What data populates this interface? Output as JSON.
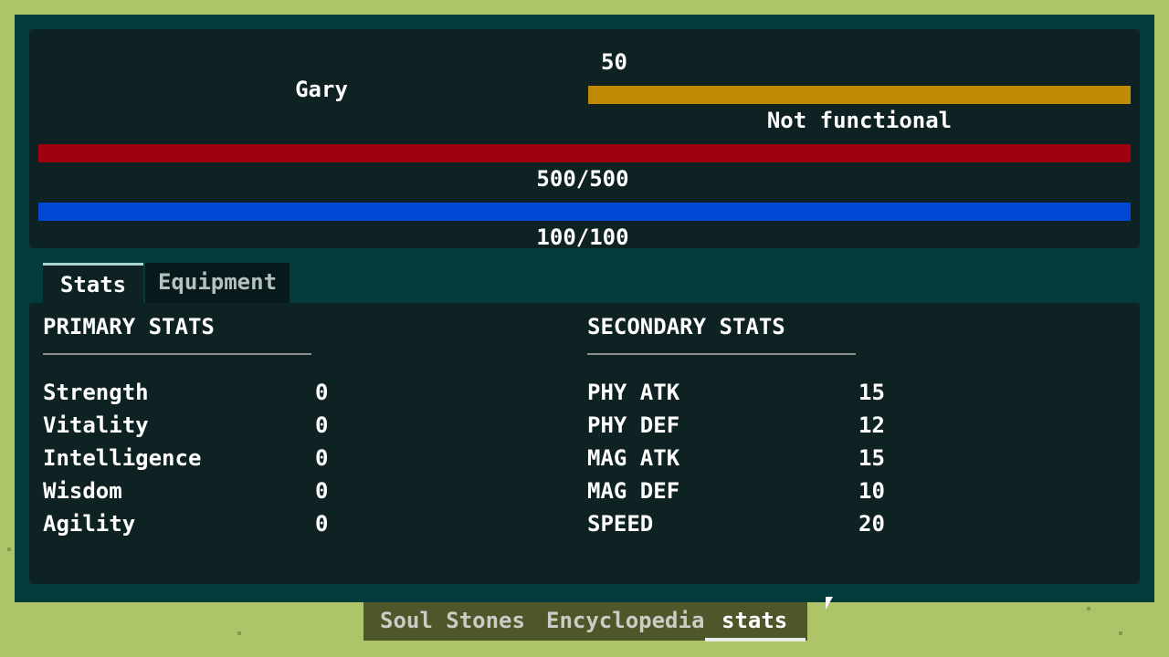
{
  "character": {
    "name": "Gary",
    "level": "50",
    "status_text": "Not functional",
    "status_bar": {
      "fill_percent": 100,
      "color": "#c08a05"
    },
    "hp": {
      "text": "500/500",
      "current": 500,
      "max": 500,
      "color": "#a00012"
    },
    "mp": {
      "text": "100/100",
      "current": 100,
      "max": 100,
      "color": "#0048d8"
    }
  },
  "tabs": [
    {
      "label": "Stats",
      "active": true
    },
    {
      "label": "Equipment",
      "active": false
    }
  ],
  "primary": {
    "title": "PRIMARY STATS",
    "rows": [
      {
        "label": "Strength",
        "value": "0"
      },
      {
        "label": "Vitality",
        "value": "0"
      },
      {
        "label": "Intelligence",
        "value": "0"
      },
      {
        "label": "Wisdom",
        "value": "0"
      },
      {
        "label": "Agility",
        "value": "0"
      }
    ]
  },
  "secondary": {
    "title": "SECONDARY STATS",
    "rows": [
      {
        "label": "PHY ATK",
        "value": "15"
      },
      {
        "label": "PHY DEF",
        "value": "12"
      },
      {
        "label": "MAG ATK",
        "value": "15"
      },
      {
        "label": "MAG DEF",
        "value": "10"
      },
      {
        "label": "SPEED",
        "value": "20"
      }
    ]
  },
  "bottom_tabs": [
    {
      "label": "Soul Stones",
      "active": false
    },
    {
      "label": "Encyclopedia",
      "active": false
    },
    {
      "label": "stats",
      "active": true
    }
  ]
}
